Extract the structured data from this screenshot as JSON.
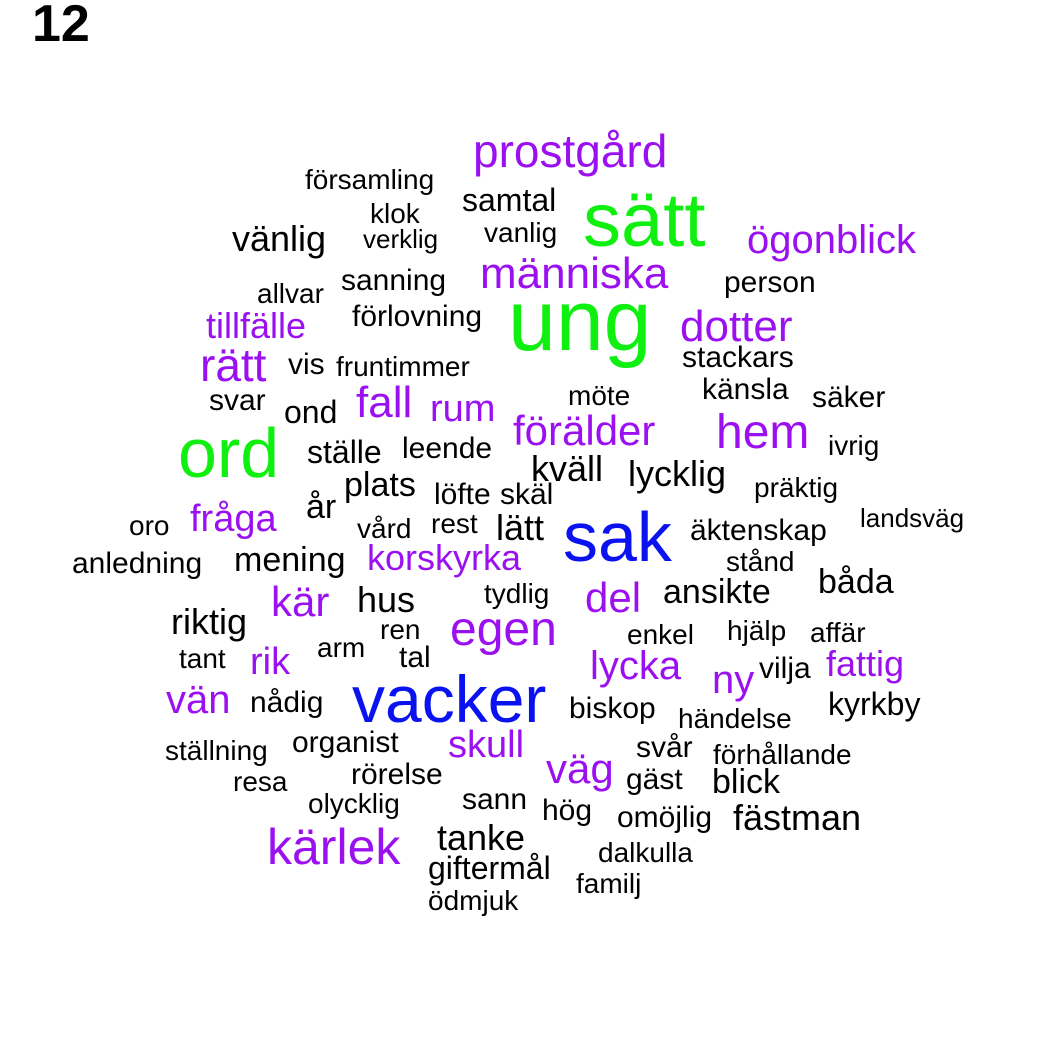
{
  "panel_label": "12",
  "colors": {
    "black": "#000000",
    "purple": "#9B10F0",
    "green": "#10F010",
    "blue": "#0A12F0"
  },
  "words": [
    {
      "text": "ung",
      "color": "green"
    },
    {
      "text": "sätt",
      "color": "green"
    },
    {
      "text": "ord",
      "color": "green"
    },
    {
      "text": "sak",
      "color": "blue"
    },
    {
      "text": "vacker",
      "color": "blue"
    },
    {
      "text": "prostgård",
      "color": "purple"
    },
    {
      "text": "ögonblick",
      "color": "purple"
    },
    {
      "text": "människa",
      "color": "purple"
    },
    {
      "text": "dotter",
      "color": "purple"
    },
    {
      "text": "tillfälle",
      "color": "purple"
    },
    {
      "text": "rätt",
      "color": "purple"
    },
    {
      "text": "fall",
      "color": "purple"
    },
    {
      "text": "rum",
      "color": "purple"
    },
    {
      "text": "förälder",
      "color": "purple"
    },
    {
      "text": "hem",
      "color": "purple"
    },
    {
      "text": "fråga",
      "color": "purple"
    },
    {
      "text": "korskyrka",
      "color": "purple"
    },
    {
      "text": "kär",
      "color": "purple"
    },
    {
      "text": "del",
      "color": "purple"
    },
    {
      "text": "egen",
      "color": "purple"
    },
    {
      "text": "rik",
      "color": "purple"
    },
    {
      "text": "lycka",
      "color": "purple"
    },
    {
      "text": "fattig",
      "color": "purple"
    },
    {
      "text": "ny",
      "color": "purple"
    },
    {
      "text": "vän",
      "color": "purple"
    },
    {
      "text": "skull",
      "color": "purple"
    },
    {
      "text": "väg",
      "color": "purple"
    },
    {
      "text": "kärlek",
      "color": "purple"
    },
    {
      "text": "församling",
      "color": "black"
    },
    {
      "text": "samtal",
      "color": "black"
    },
    {
      "text": "klok",
      "color": "black"
    },
    {
      "text": "vänlig",
      "color": "black"
    },
    {
      "text": "verklig",
      "color": "black"
    },
    {
      "text": "vanlig",
      "color": "black"
    },
    {
      "text": "sanning",
      "color": "black"
    },
    {
      "text": "person",
      "color": "black"
    },
    {
      "text": "allvar",
      "color": "black"
    },
    {
      "text": "förlovning",
      "color": "black"
    },
    {
      "text": "vis",
      "color": "black"
    },
    {
      "text": "fruntimmer",
      "color": "black"
    },
    {
      "text": "stackars",
      "color": "black"
    },
    {
      "text": "känsla",
      "color": "black"
    },
    {
      "text": "möte",
      "color": "black"
    },
    {
      "text": "säker",
      "color": "black"
    },
    {
      "text": "svar",
      "color": "black"
    },
    {
      "text": "ond",
      "color": "black"
    },
    {
      "text": "ställe",
      "color": "black"
    },
    {
      "text": "leende",
      "color": "black"
    },
    {
      "text": "ivrig",
      "color": "black"
    },
    {
      "text": "kväll",
      "color": "black"
    },
    {
      "text": "lycklig",
      "color": "black"
    },
    {
      "text": "plats",
      "color": "black"
    },
    {
      "text": "präktig",
      "color": "black"
    },
    {
      "text": "år",
      "color": "black"
    },
    {
      "text": "löfte",
      "color": "black"
    },
    {
      "text": "skäl",
      "color": "black"
    },
    {
      "text": "landsväg",
      "color": "black"
    },
    {
      "text": "oro",
      "color": "black"
    },
    {
      "text": "vård",
      "color": "black"
    },
    {
      "text": "rest",
      "color": "black"
    },
    {
      "text": "lätt",
      "color": "black"
    },
    {
      "text": "äktenskap",
      "color": "black"
    },
    {
      "text": "anledning",
      "color": "black"
    },
    {
      "text": "mening",
      "color": "black"
    },
    {
      "text": "stånd",
      "color": "black"
    },
    {
      "text": "båda",
      "color": "black"
    },
    {
      "text": "hus",
      "color": "black"
    },
    {
      "text": "tydlig",
      "color": "black"
    },
    {
      "text": "ansikte",
      "color": "black"
    },
    {
      "text": "riktig",
      "color": "black"
    },
    {
      "text": "ren",
      "color": "black"
    },
    {
      "text": "enkel",
      "color": "black"
    },
    {
      "text": "hjälp",
      "color": "black"
    },
    {
      "text": "affär",
      "color": "black"
    },
    {
      "text": "tant",
      "color": "black"
    },
    {
      "text": "arm",
      "color": "black"
    },
    {
      "text": "tal",
      "color": "black"
    },
    {
      "text": "vilja",
      "color": "black"
    },
    {
      "text": "nådig",
      "color": "black"
    },
    {
      "text": "biskop",
      "color": "black"
    },
    {
      "text": "händelse",
      "color": "black"
    },
    {
      "text": "kyrkby",
      "color": "black"
    },
    {
      "text": "ställning",
      "color": "black"
    },
    {
      "text": "organist",
      "color": "black"
    },
    {
      "text": "svår",
      "color": "black"
    },
    {
      "text": "förhållande",
      "color": "black"
    },
    {
      "text": "resa",
      "color": "black"
    },
    {
      "text": "rörelse",
      "color": "black"
    },
    {
      "text": "gäst",
      "color": "black"
    },
    {
      "text": "blick",
      "color": "black"
    },
    {
      "text": "olycklig",
      "color": "black"
    },
    {
      "text": "sann",
      "color": "black"
    },
    {
      "text": "hög",
      "color": "black"
    },
    {
      "text": "omöjlig",
      "color": "black"
    },
    {
      "text": "fästman",
      "color": "black"
    },
    {
      "text": "tanke",
      "color": "black"
    },
    {
      "text": "dalkulla",
      "color": "black"
    },
    {
      "text": "giftermål",
      "color": "black"
    },
    {
      "text": "familj",
      "color": "black"
    },
    {
      "text": "ödmjuk",
      "color": "black"
    }
  ]
}
